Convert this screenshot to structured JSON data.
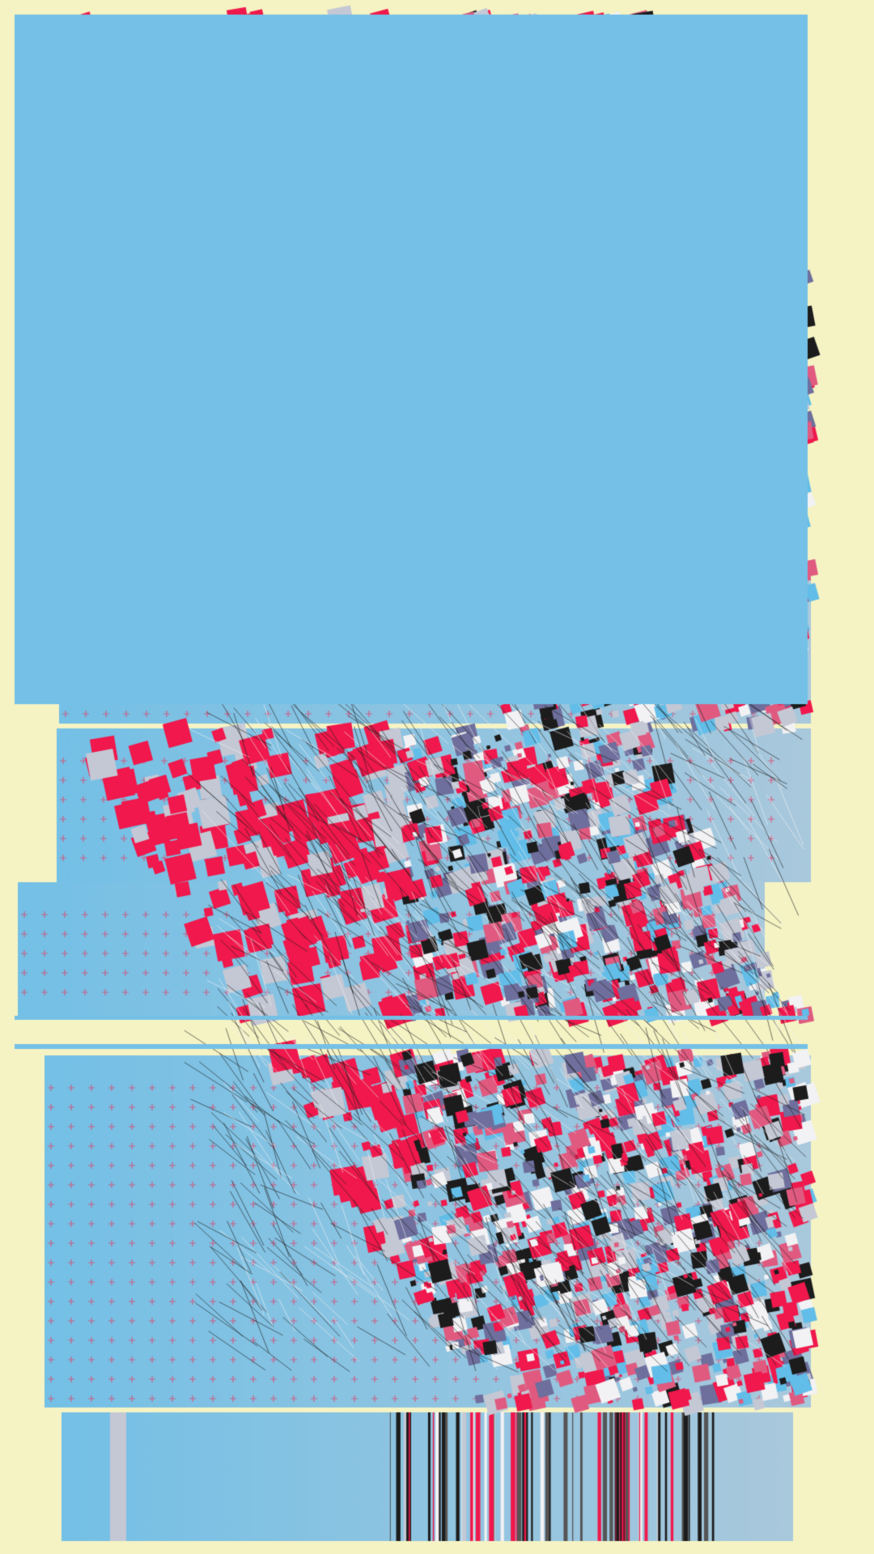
{
  "artwork": {
    "kind": "generative glitch artwork",
    "colors": {
      "background": "#f5f3c4",
      "panel_blue": "#74c0e6",
      "panel_blue_light": "#a9c8dc",
      "crimson": "#f0184c",
      "pink": "#e05a80",
      "slate_purple": "#6e6f9c",
      "silver": "#c4c8d4",
      "sky": "#62bde8",
      "black": "#1c1c1c",
      "white": "#f2f2f4",
      "cross_marks": "#e0406a"
    }
  }
}
